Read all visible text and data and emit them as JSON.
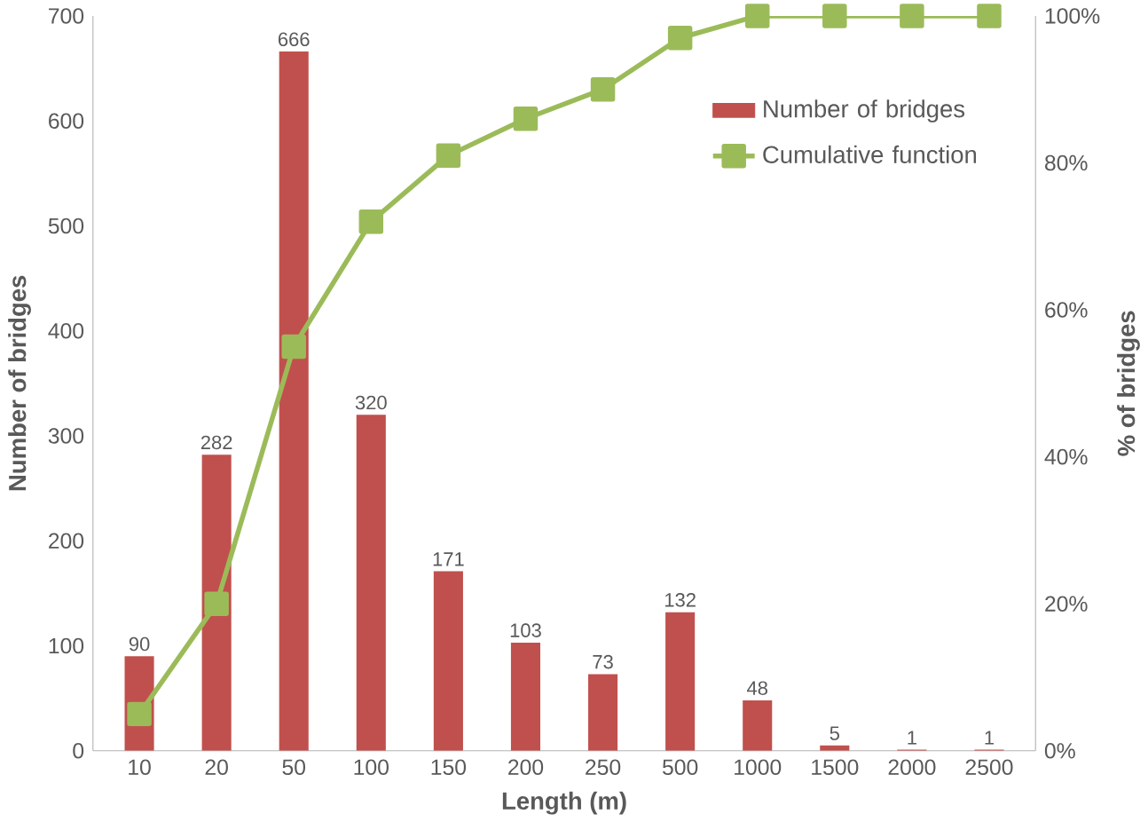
{
  "chart_data": {
    "type": "bar",
    "xlabel": "Length (m)",
    "ylabel": "Number of bridges",
    "y2label": "% of bridges",
    "categories": [
      "10",
      "20",
      "50",
      "100",
      "150",
      "200",
      "250",
      "500",
      "1000",
      "1500",
      "2000",
      "2500"
    ],
    "series": [
      {
        "name": "Number of bridges",
        "color": "#c0504d",
        "values": [
          90,
          282,
          666,
          320,
          171,
          103,
          73,
          132,
          48,
          5,
          1,
          1
        ],
        "value_labels": [
          "90",
          "282",
          "666",
          "320",
          "171",
          "103",
          "73",
          "132",
          "48",
          "5",
          "1",
          "1"
        ]
      },
      {
        "name": "Cumulative function",
        "type": "line",
        "axis": "y2",
        "color": "#9bbb59",
        "marker": "square",
        "values": [
          5,
          20,
          55,
          72,
          81,
          86,
          90,
          97,
          100,
          100,
          100,
          100
        ]
      }
    ],
    "ylim": [
      0,
      700
    ],
    "yticks": [
      0,
      100,
      200,
      300,
      400,
      500,
      600,
      700
    ],
    "y2lim": [
      0,
      100
    ],
    "y2ticks": [
      {
        "value": 0,
        "label": "0%"
      },
      {
        "value": 20,
        "label": "20%"
      },
      {
        "value": 40,
        "label": "40%"
      },
      {
        "value": 60,
        "label": "60%"
      },
      {
        "value": 80,
        "label": "80%"
      },
      {
        "value": 100,
        "label": "100%"
      }
    ],
    "grid": false,
    "legend": "top right"
  }
}
